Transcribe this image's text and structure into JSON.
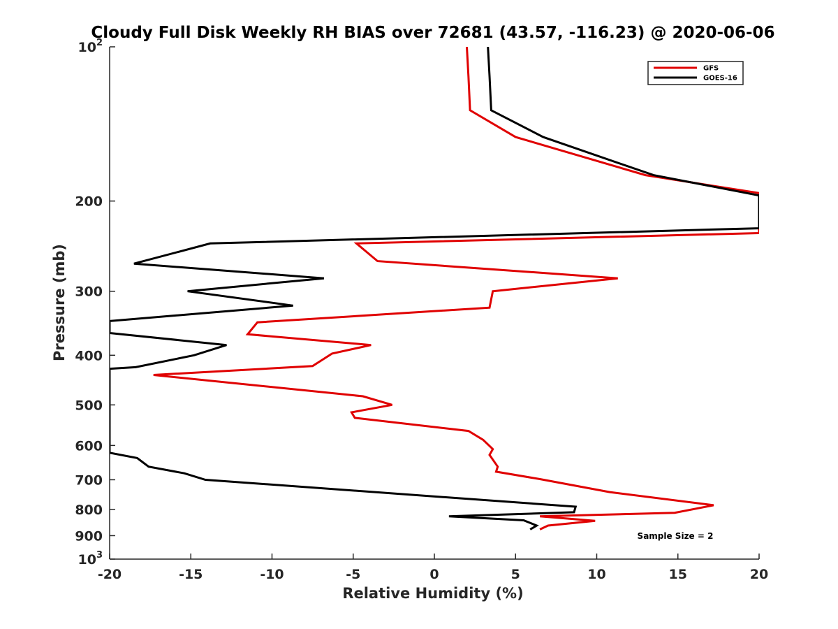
{
  "chart_data": {
    "type": "line",
    "title": "Cloudy Full Disk Weekly RH BIAS over 72681 (43.57, -116.23) @ 2020-06-06",
    "xlabel": "Relative Humidity (%)",
    "ylabel": "Pressure (mb)",
    "xlim": [
      -20,
      20
    ],
    "ylim": [
      100,
      1000
    ],
    "y_scale": "log",
    "y_reversed": true,
    "grid": false,
    "legend_position": "top-right",
    "x_ticks": [
      "-20",
      "-15",
      "-10",
      "-5",
      "0",
      "5",
      "10",
      "15",
      "20"
    ],
    "y_ticks": [
      {
        "value": 100,
        "base": "10",
        "exp": "2"
      },
      {
        "value": 200,
        "label": "200"
      },
      {
        "value": 300,
        "label": "300"
      },
      {
        "value": 400,
        "label": "400"
      },
      {
        "value": 500,
        "label": "500"
      },
      {
        "value": 600,
        "label": "600"
      },
      {
        "value": 700,
        "label": "700"
      },
      {
        "value": 800,
        "label": "800"
      },
      {
        "value": 900,
        "label": "900"
      },
      {
        "value": 1000,
        "base": "10",
        "exp": "3"
      }
    ],
    "annotation": "Sample Size = 2",
    "series": [
      {
        "name": "GFS",
        "color": "#e00000",
        "points": [
          [
            2.0,
            100
          ],
          [
            2.1,
            114
          ],
          [
            2.2,
            133
          ],
          [
            5.0,
            150
          ],
          [
            13.0,
            178
          ],
          [
            20.0,
            193
          ],
          [
            20.0,
            231
          ],
          [
            -4.8,
            242
          ],
          [
            -3.5,
            262
          ],
          [
            11.3,
            283
          ],
          [
            3.6,
            300
          ],
          [
            3.4,
            323
          ],
          [
            -10.9,
            345
          ],
          [
            -11.5,
            364
          ],
          [
            -3.9,
            382
          ],
          [
            -6.3,
            397
          ],
          [
            -7.5,
            420
          ],
          [
            -17.3,
            437
          ],
          [
            -4.4,
            481
          ],
          [
            -2.6,
            500
          ],
          [
            -5.1,
            517
          ],
          [
            -4.9,
            530
          ],
          [
            2.1,
            562
          ],
          [
            3.0,
            585
          ],
          [
            3.6,
            610
          ],
          [
            3.4,
            626
          ],
          [
            3.9,
            660
          ],
          [
            3.8,
            675
          ],
          [
            6.5,
            698
          ],
          [
            10.8,
            740
          ],
          [
            17.2,
            785
          ],
          [
            14.8,
            812
          ],
          [
            6.5,
            825
          ],
          [
            9.9,
            842
          ],
          [
            7.0,
            860
          ],
          [
            6.5,
            875
          ]
        ]
      },
      {
        "name": "GOES-16",
        "color": "#000000",
        "points": [
          [
            3.3,
            100
          ],
          [
            3.4,
            114
          ],
          [
            3.5,
            133
          ],
          [
            6.7,
            150
          ],
          [
            13.5,
            178
          ],
          [
            20.0,
            195
          ],
          [
            20.0,
            226
          ],
          [
            -13.8,
            242
          ],
          [
            -18.5,
            265
          ],
          [
            -6.8,
            283
          ],
          [
            -15.2,
            300
          ],
          [
            -8.7,
            320
          ],
          [
            -20.0,
            343
          ],
          [
            -20.0,
            362
          ],
          [
            -12.8,
            382
          ],
          [
            -14.8,
            400
          ],
          [
            -18.4,
            422
          ],
          [
            -20.0,
            425
          ],
          [
            -20.0,
            620
          ],
          [
            -18.3,
            635
          ],
          [
            -17.6,
            660
          ],
          [
            -15.4,
            680
          ],
          [
            -14.1,
            700
          ],
          [
            8.7,
            790
          ],
          [
            8.6,
            810
          ],
          [
            0.9,
            825
          ],
          [
            5.5,
            840
          ],
          [
            6.3,
            860
          ],
          [
            5.9,
            875
          ]
        ]
      }
    ]
  }
}
